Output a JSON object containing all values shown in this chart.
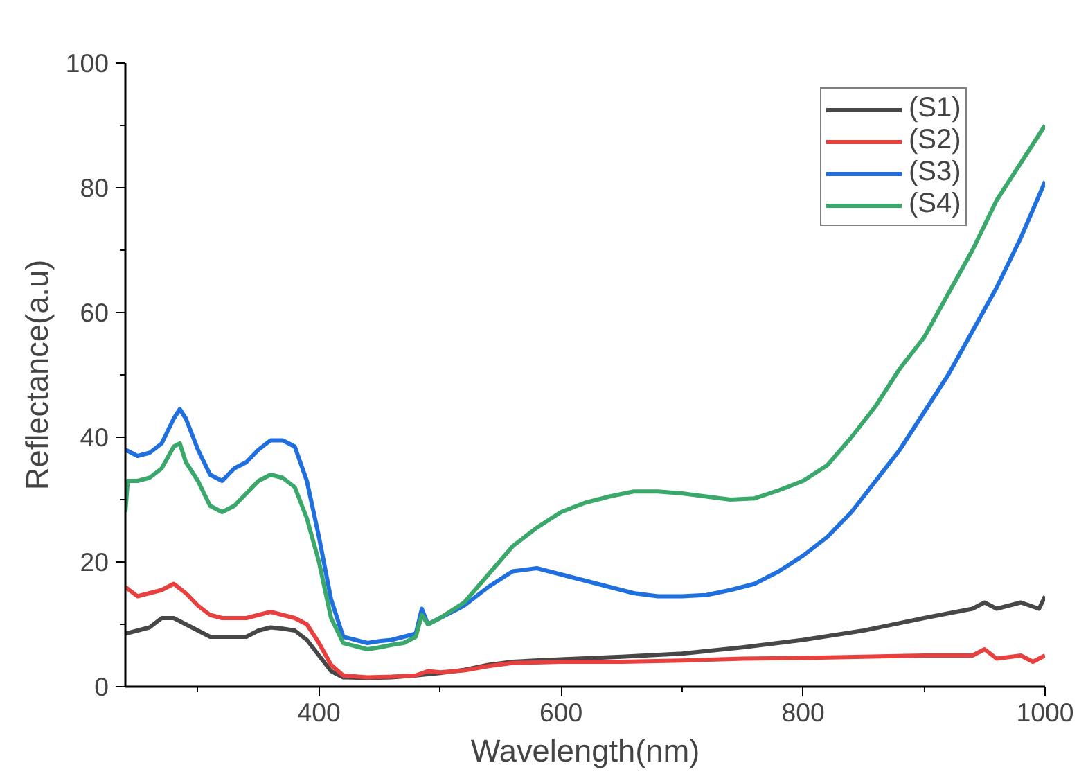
{
  "chart_data": {
    "type": "line",
    "xlabel": "Wavelength(nm)",
    "ylabel": "Reflectance(a.u)",
    "xlim": [
      240,
      1000
    ],
    "ylim": [
      0,
      100
    ],
    "xticks": [
      {
        "value": 300,
        "label": null
      },
      400,
      {
        "value": 500,
        "label": null
      },
      600,
      {
        "value": 700,
        "label": null
      },
      800,
      {
        "value": 900,
        "label": null
      },
      1000
    ],
    "yticks": [
      0,
      {
        "value": 10,
        "label": null
      },
      20,
      {
        "value": 30,
        "label": null
      },
      40,
      {
        "value": 50,
        "label": null
      },
      60,
      {
        "value": 70,
        "label": null
      },
      80,
      {
        "value": 90,
        "label": null
      },
      100
    ],
    "grid": false,
    "legend": "top right",
    "marker": "none",
    "line_style": "solid",
    "series": [
      {
        "name": "(S1)",
        "color": "#474747",
        "x": [
          240,
          250,
          260,
          270,
          280,
          290,
          300,
          310,
          320,
          340,
          350,
          360,
          370,
          380,
          390,
          400,
          410,
          420,
          440,
          460,
          480,
          500,
          520,
          540,
          560,
          600,
          650,
          700,
          750,
          800,
          850,
          900,
          940,
          950,
          960,
          980,
          995,
          1000
        ],
        "values": [
          8.5,
          9,
          9.5,
          11,
          11,
          10,
          9,
          8,
          8,
          8,
          9,
          9.5,
          9.3,
          9,
          7.5,
          5,
          2.5,
          1.5,
          1.4,
          1.5,
          1.8,
          2.2,
          2.7,
          3.5,
          4,
          4.4,
          4.8,
          5.3,
          6.3,
          7.5,
          9,
          11,
          12.5,
          13.5,
          12.5,
          13.5,
          12.5,
          14.5
        ]
      },
      {
        "name": "(S2)",
        "color": "#e8403e",
        "x": [
          240,
          250,
          260,
          270,
          280,
          290,
          300,
          310,
          320,
          330,
          340,
          350,
          360,
          370,
          380,
          390,
          400,
          410,
          420,
          440,
          460,
          480,
          490,
          500,
          520,
          540,
          560,
          600,
          650,
          700,
          750,
          800,
          850,
          900,
          940,
          950,
          960,
          980,
          990,
          1000
        ],
        "values": [
          16,
          14.5,
          15,
          15.5,
          16.5,
          15,
          13,
          11.5,
          11,
          11,
          11,
          11.5,
          12,
          11.5,
          11,
          10,
          7,
          3.5,
          1.8,
          1.5,
          1.6,
          1.8,
          2.5,
          2.3,
          2.6,
          3.3,
          3.8,
          4,
          4,
          4.2,
          4.5,
          4.6,
          4.8,
          5,
          5,
          6,
          4.5,
          5,
          4,
          5
        ]
      },
      {
        "name": "(S3)",
        "color": "#1f6fde",
        "x": [
          240,
          250,
          260,
          270,
          280,
          285,
          290,
          300,
          310,
          320,
          330,
          340,
          350,
          360,
          370,
          380,
          390,
          400,
          410,
          420,
          430,
          440,
          450,
          460,
          470,
          480,
          485,
          490,
          500,
          520,
          540,
          560,
          580,
          600,
          620,
          640,
          660,
          680,
          700,
          720,
          740,
          760,
          780,
          800,
          820,
          840,
          860,
          880,
          900,
          920,
          940,
          960,
          980,
          1000
        ],
        "values": [
          38,
          37,
          37.5,
          39,
          43,
          44.5,
          43,
          38,
          34,
          33,
          35,
          36,
          38,
          39.5,
          39.5,
          38.5,
          33,
          24,
          14,
          8,
          7.5,
          7,
          7.3,
          7.5,
          8,
          8.5,
          12.5,
          10,
          11,
          13,
          16,
          18.5,
          19,
          18,
          17,
          16,
          15,
          14.5,
          14.5,
          14.7,
          15.5,
          16.5,
          18.5,
          21,
          24,
          28,
          33,
          38,
          44,
          50,
          57,
          64,
          72,
          81
        ]
      },
      {
        "name": "(S4)",
        "color": "#3aa86a",
        "x": [
          240,
          242,
          250,
          260,
          270,
          280,
          285,
          290,
          300,
          310,
          320,
          330,
          340,
          350,
          360,
          370,
          380,
          390,
          400,
          410,
          420,
          430,
          440,
          450,
          460,
          470,
          480,
          485,
          490,
          500,
          520,
          540,
          560,
          580,
          600,
          620,
          640,
          660,
          680,
          700,
          720,
          740,
          760,
          780,
          800,
          820,
          840,
          860,
          880,
          900,
          920,
          940,
          960,
          980,
          1000
        ],
        "values": [
          28,
          33,
          33,
          33.5,
          35,
          38.5,
          39,
          36,
          33,
          29,
          28,
          29,
          31,
          33,
          34,
          33.5,
          32,
          27,
          20,
          11,
          7,
          6.5,
          6,
          6.3,
          6.7,
          7,
          8,
          11.5,
          10,
          11,
          13.5,
          18,
          22.5,
          25.5,
          28,
          29.5,
          30.5,
          31.3,
          31.3,
          31,
          30.5,
          30,
          30.2,
          31.5,
          33,
          35.5,
          40,
          45,
          51,
          56,
          63,
          70,
          78,
          84,
          90
        ]
      }
    ]
  }
}
